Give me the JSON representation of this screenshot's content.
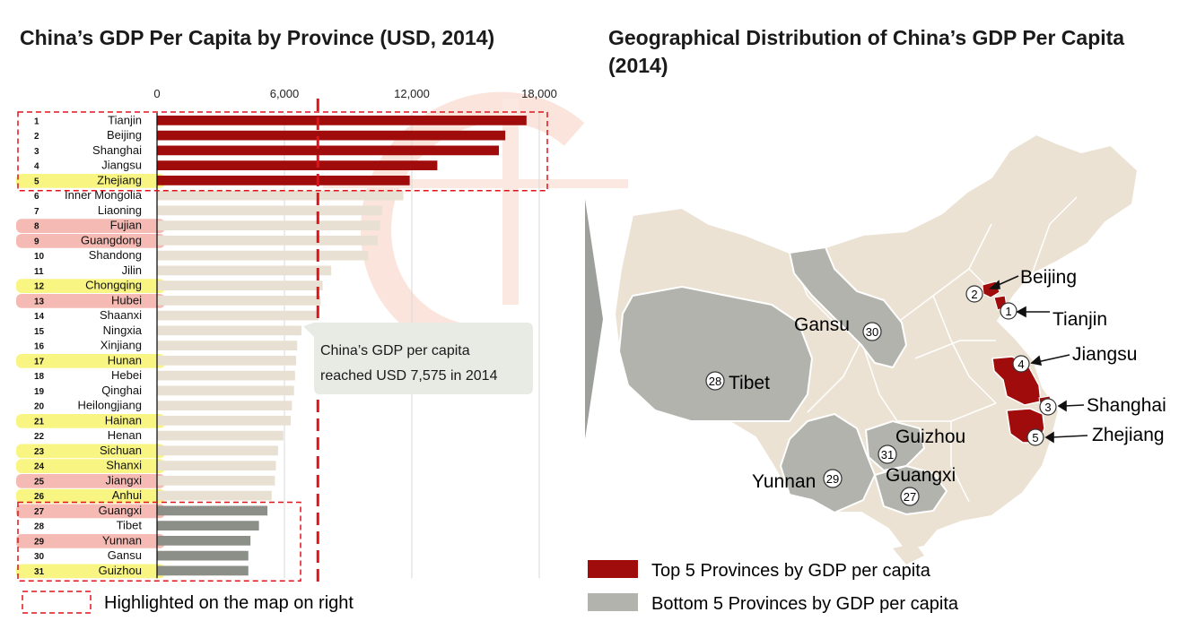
{
  "left_title": "China’s GDP Per Capita by Province (USD, 2014)",
  "right_title": "Geographical Distribution of China’s GDP Per Capita (2014)",
  "chart_data": {
    "type": "bar",
    "orientation": "horizontal",
    "x_ticks": [
      "0",
      "6,000",
      "12,000",
      "18,000"
    ],
    "xlim": [
      0,
      18000
    ],
    "grid": true,
    "reference_line": 7575,
    "annotation": "China’s GDP per capita reached USD 7,575 in 2014",
    "categories": [
      "Tianjin",
      "Beijing",
      "Shanghai",
      "Jiangsu",
      "Zhejiang",
      "Inner Mongolia",
      "Liaoning",
      "Fujian",
      "Guangdong",
      "Shandong",
      "Jilin",
      "Chongqing",
      "Hubei",
      "Shaanxi",
      "Ningxia",
      "Xinjiang",
      "Hunan",
      "Hebei",
      "Qinghai",
      "Heilongjiang",
      "Hainan",
      "Henan",
      "Sichuan",
      "Shanxi",
      "Jiangxi",
      "Anhui",
      "Guangxi",
      "Tibet",
      "Yunnan",
      "Gansu",
      "Guizhou"
    ],
    "ranks": [
      "1",
      "2",
      "3",
      "4",
      "5",
      "6",
      "7",
      "8",
      "9",
      "10",
      "11",
      "12",
      "13",
      "14",
      "15",
      "16",
      "17",
      "18",
      "19",
      "20",
      "21",
      "22",
      "23",
      "24",
      "25",
      "26",
      "27",
      "28",
      "29",
      "30",
      "31"
    ],
    "values": [
      17400,
      16400,
      16100,
      13200,
      11900,
      11600,
      10600,
      10500,
      10400,
      9950,
      8200,
      7800,
      7700,
      7600,
      6800,
      6600,
      6550,
      6500,
      6450,
      6350,
      6300,
      5950,
      5700,
      5600,
      5550,
      5400,
      5200,
      4800,
      4400,
      4300,
      4300
    ],
    "bar_colors": [
      "#a00b0b",
      "#a00b0b",
      "#a00b0b",
      "#a00b0b",
      "#a00b0b",
      "#e8e0d2",
      "#e8e0d2",
      "#e8e0d2",
      "#e8e0d2",
      "#e8e0d2",
      "#e8e0d2",
      "#e8e0d2",
      "#e8e0d2",
      "#e8e0d2",
      "#e8e0d2",
      "#e8e0d2",
      "#e8e0d2",
      "#e8e0d2",
      "#e8e0d2",
      "#e8e0d2",
      "#e8e0d2",
      "#e8e0d2",
      "#e8e0d2",
      "#e8e0d2",
      "#e8e0d2",
      "#e8e0d2",
      "#8c8f88",
      "#8c8f88",
      "#8c8f88",
      "#8c8f88",
      "#8c8f88"
    ],
    "label_highlights": [
      "",
      "",
      "",
      "",
      "yellow",
      "",
      "",
      "pink",
      "pink",
      "",
      "",
      "yellow",
      "pink",
      "",
      "",
      "",
      "yellow",
      "",
      "",
      "",
      "yellow",
      "",
      "yellow",
      "yellow",
      "pink",
      "yellow",
      "pink",
      "",
      "pink",
      "",
      "yellow"
    ]
  },
  "highlight_legend": "Highlighted on the map on right",
  "map": {
    "labels": {
      "beijing": "Beijing",
      "tianjin": "Tianjin",
      "jiangsu": "Jiangsu",
      "shanghai": "Shanghai",
      "zhejiang": "Zhejiang",
      "gansu": "Gansu",
      "tibet": "Tibet",
      "guizhou": "Guizhou",
      "yunnan": "Yunnan",
      "guangxi": "Guangxi"
    },
    "markers": {
      "tianjin": "1",
      "beijing": "2",
      "shanghai": "3",
      "jiangsu": "4",
      "zhejiang": "5",
      "guangxi": "27",
      "tibet": "28",
      "yunnan": "29",
      "gansu": "30",
      "guizhou": "31"
    }
  },
  "legend": {
    "top5": "Top 5 Provinces by GDP per capita",
    "bottom5": "Bottom 5 Provinces by GDP per capita"
  },
  "colors": {
    "top": "#a00b0b",
    "bottom": "#b1b3ac",
    "bottom_bar": "#8c8f88",
    "mid_bar": "#e8e0d2",
    "land": "#ebe2d3",
    "reference": "#e0131a",
    "highlight_yellow": "#f6f25a",
    "highlight_pink": "#f2a39a"
  }
}
